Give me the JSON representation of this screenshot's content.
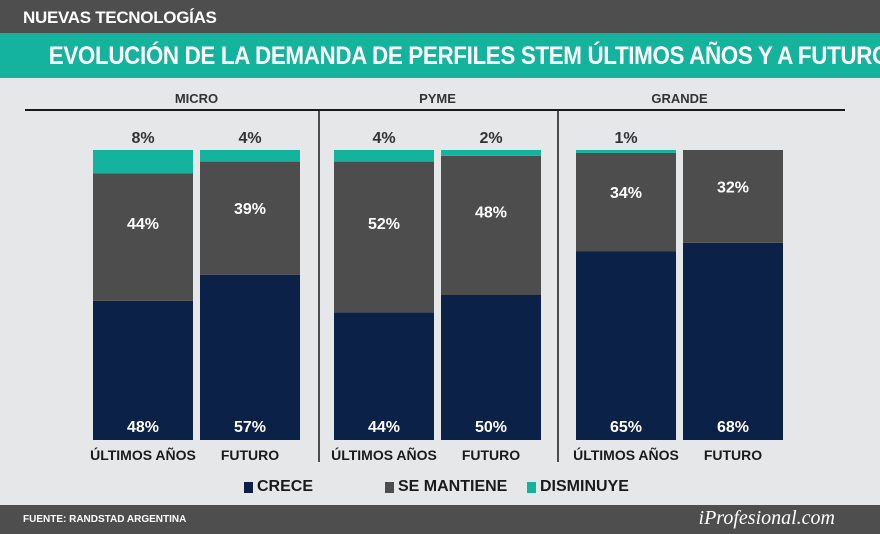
{
  "header": {
    "section": "NUEVAS TECNOLOGÍAS",
    "title": "EVOLUCIÓN DE LA DEMANDA DE PERFILES STEM ÚLTIMOS AÑOS Y A FUTURO"
  },
  "footer": {
    "source": "FUENTE: RANDSTAD ARGENTINA",
    "logo": "iProfesional.com"
  },
  "colors": {
    "crece": "#0c2148",
    "se_mantiene": "#4d4d4d",
    "disminuye": "#14b39d"
  },
  "chart_data": {
    "type": "stacked-bar",
    "title": "EVOLUCIÓN DE LA DEMANDA DE PERFILES STEM ÚLTIMOS AÑOS Y A FUTURO",
    "ylim": [
      0,
      100
    ],
    "legend": {
      "placement": "bottom",
      "entries": [
        "CRECE",
        "SE MANTIENE",
        "DISMINUYE"
      ]
    },
    "groups": [
      {
        "name": "MICRO",
        "bars": [
          {
            "label": "ÚLTIMOS AÑOS",
            "values": [
              48,
              44,
              8
            ]
          },
          {
            "label": "FUTURO",
            "values": [
              57,
              39,
              4
            ]
          }
        ]
      },
      {
        "name": "PYME",
        "bars": [
          {
            "label": "ÚLTIMOS AÑOS",
            "values": [
              44,
              52,
              4
            ]
          },
          {
            "label": "FUTURO",
            "values": [
              50,
              48,
              2
            ]
          }
        ]
      },
      {
        "name": "GRANDE",
        "bars": [
          {
            "label": "ÚLTIMOS AÑOS",
            "values": [
              65,
              34,
              1
            ]
          },
          {
            "label": "FUTURO",
            "values": [
              68,
              32,
              0
            ]
          }
        ]
      }
    ]
  }
}
